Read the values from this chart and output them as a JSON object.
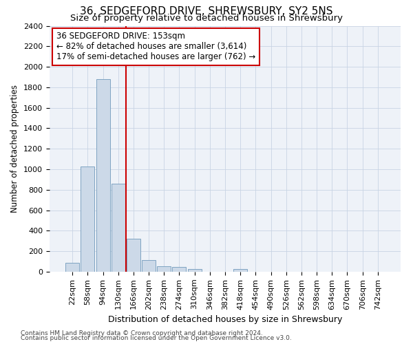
{
  "title": "36, SEDGEFORD DRIVE, SHREWSBURY, SY2 5NS",
  "subtitle": "Size of property relative to detached houses in Shrewsbury",
  "xlabel": "Distribution of detached houses by size in Shrewsbury",
  "ylabel": "Number of detached properties",
  "footnote1": "Contains HM Land Registry data © Crown copyright and database right 2024.",
  "footnote2": "Contains public sector information licensed under the Open Government Licence v3.0.",
  "bin_labels": [
    "22sqm",
    "58sqm",
    "94sqm",
    "130sqm",
    "166sqm",
    "202sqm",
    "238sqm",
    "274sqm",
    "310sqm",
    "346sqm",
    "382sqm",
    "418sqm",
    "454sqm",
    "490sqm",
    "526sqm",
    "562sqm",
    "598sqm",
    "634sqm",
    "670sqm",
    "706sqm",
    "742sqm"
  ],
  "bar_values": [
    90,
    1025,
    1880,
    860,
    320,
    115,
    55,
    50,
    30,
    0,
    0,
    30,
    0,
    0,
    0,
    0,
    0,
    0,
    0,
    0,
    0
  ],
  "bar_color": "#ccd9e8",
  "bar_edge_color": "#7099bb",
  "ylim": [
    0,
    2400
  ],
  "yticks": [
    0,
    200,
    400,
    600,
    800,
    1000,
    1200,
    1400,
    1600,
    1800,
    2000,
    2200,
    2400
  ],
  "red_line_x": 3.5,
  "red_line_color": "#cc0000",
  "annotation_line1": "36 SEDGEFORD DRIVE: 153sqm",
  "annotation_line2": "← 82% of detached houses are smaller (3,614)",
  "annotation_line3": "17% of semi-detached houses are larger (762) →",
  "annotation_box_color": "#ffffff",
  "annotation_box_edge": "#cc0000",
  "background_color": "#ffffff",
  "plot_bg_color": "#eef2f8",
  "grid_color": "#c8d4e4",
  "title_fontsize": 11,
  "subtitle_fontsize": 9.5,
  "xlabel_fontsize": 9,
  "ylabel_fontsize": 8.5,
  "tick_fontsize": 8,
  "annot_fontsize": 8.5,
  "footnote_fontsize": 6.5
}
